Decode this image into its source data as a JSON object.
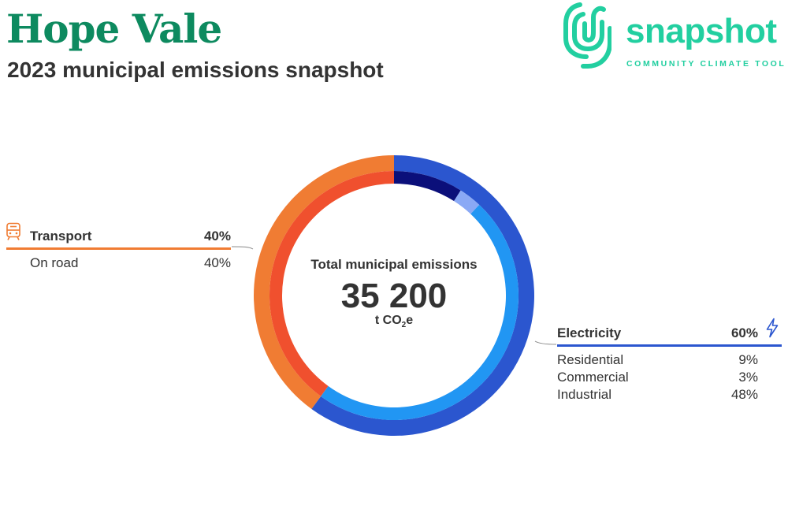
{
  "header": {
    "title": "Hope Vale",
    "subtitle": "2023 municipal emissions snapshot"
  },
  "logo": {
    "word": "snapshot",
    "tagline": "COMMUNITY CLIMATE TOOL",
    "color": "#22cfa0"
  },
  "center": {
    "label": "Total municipal emissions",
    "value": "35 200",
    "unit_prefix": "t CO",
    "unit_sub": "2",
    "unit_suffix": "e"
  },
  "groups": {
    "transport": {
      "icon": "train-icon",
      "label": "Transport",
      "pct": "40%",
      "color": "#f07c33",
      "items": [
        {
          "label": "On road",
          "pct": "40%"
        }
      ]
    },
    "electricity": {
      "icon": "lightning-icon",
      "label": "Electricity",
      "pct": "60%",
      "color": "#2b56cf",
      "items": [
        {
          "label": "Residential",
          "pct": "9%"
        },
        {
          "label": "Commercial",
          "pct": "3%"
        },
        {
          "label": "Industrial",
          "pct": "48%"
        }
      ]
    }
  },
  "chart_data": {
    "type": "pie",
    "title": "Total municipal emissions",
    "total": 35200,
    "unit": "t CO2e",
    "outer_ring": [
      {
        "name": "Electricity",
        "value": 60,
        "color": "#2b56cf"
      },
      {
        "name": "Transport",
        "value": 40,
        "color": "#f07c33"
      }
    ],
    "inner_ring": [
      {
        "name": "Residential",
        "parent": "Electricity",
        "value": 9,
        "color": "#0b0f7a"
      },
      {
        "name": "Commercial",
        "parent": "Electricity",
        "value": 3,
        "color": "#8aa9f5"
      },
      {
        "name": "Industrial",
        "parent": "Electricity",
        "value": 48,
        "color": "#2196f3"
      },
      {
        "name": "On road",
        "parent": "Transport",
        "value": 40,
        "color": "#f0502e"
      }
    ]
  }
}
